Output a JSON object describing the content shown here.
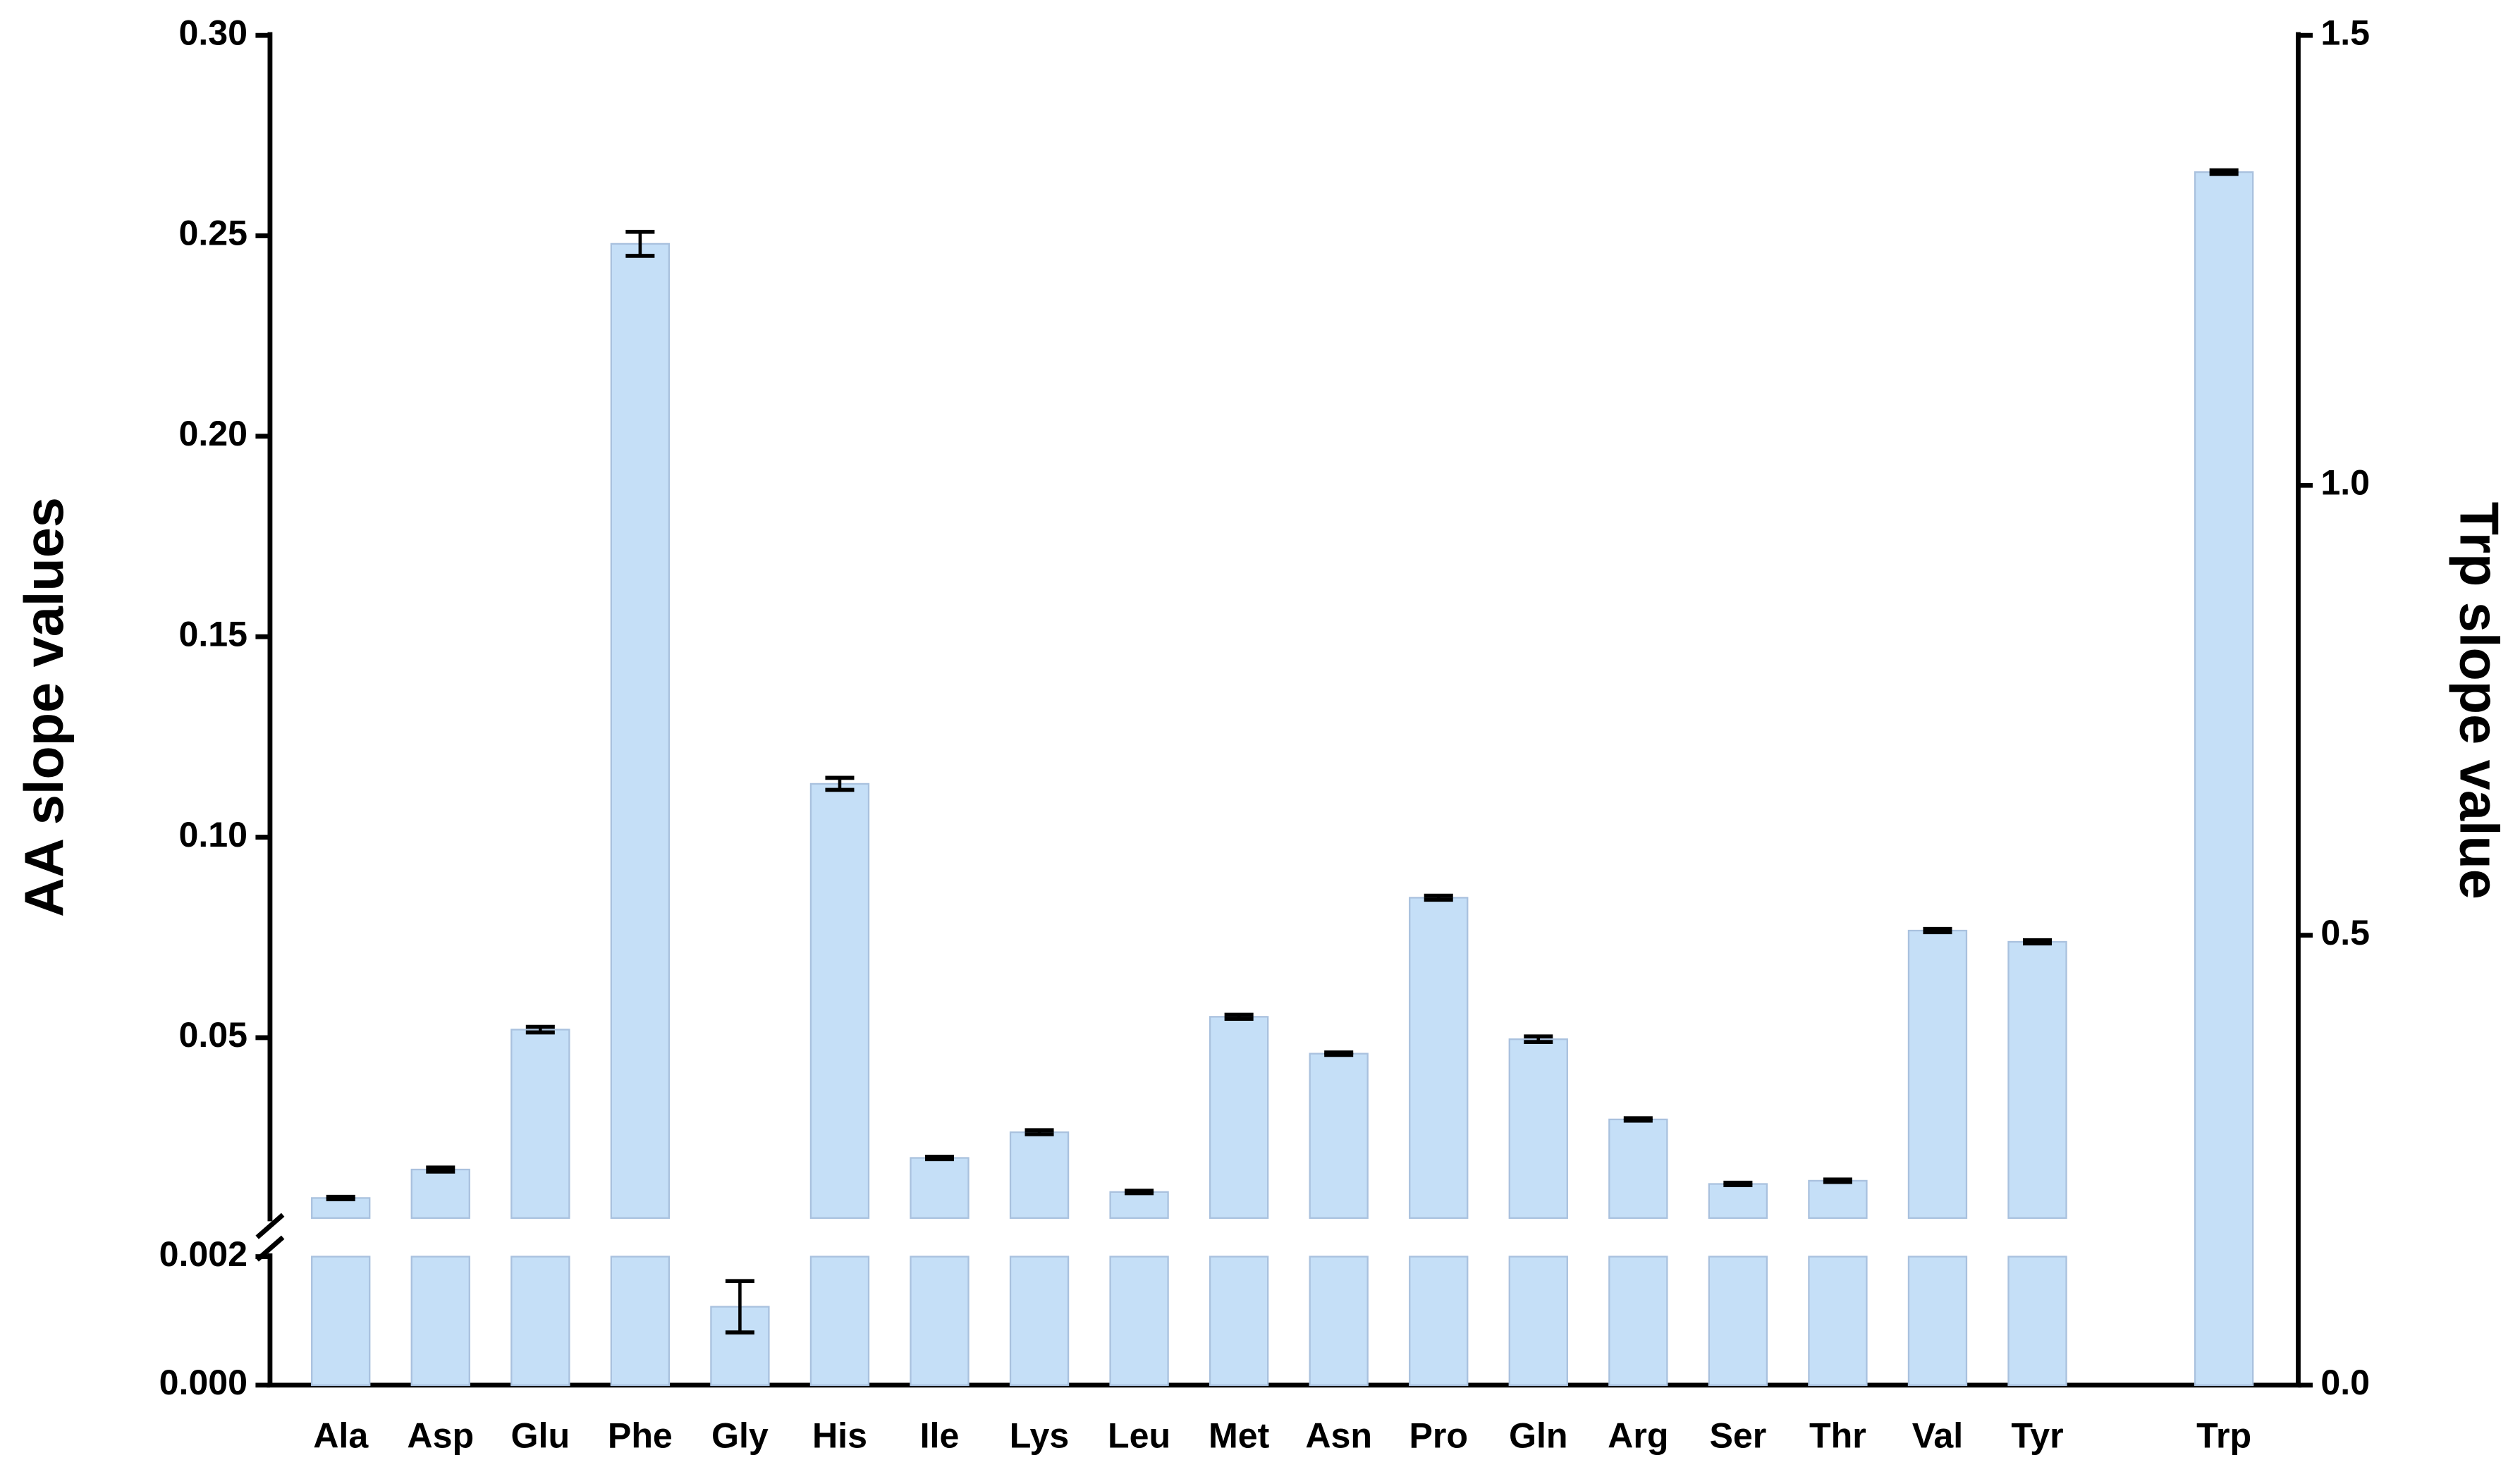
{
  "chart_data": {
    "type": "bar",
    "y_title": "AA slope values",
    "y2_title": "Trp slope value",
    "categories": [
      "Ala",
      "Asp",
      "Glu",
      "Phe",
      "Gly",
      "His",
      "Ile",
      "Lys",
      "Leu",
      "Met",
      "Asn",
      "Pro",
      "Gln",
      "Arg",
      "Ser",
      "Thr",
      "Val",
      "Tyr",
      "Trp"
    ],
    "series": [
      {
        "color": "#c5dff7",
        "values": [
          0.01,
          0.0171,
          0.052,
          0.248,
          0.00122,
          0.1133,
          0.02,
          0.0264,
          0.0115,
          0.0552,
          0.046,
          0.0849,
          0.0496,
          0.0296,
          0.0135,
          0.0143,
          0.0767,
          0.0739,
          null
        ],
        "errors": [
          0.0003,
          0.0005,
          0.0007,
          0.003,
          0.0004,
          0.0015,
          0.0003,
          0.0005,
          0.0003,
          0.0005,
          0.0003,
          0.0005,
          0.0007,
          0.0003,
          0.0003,
          0.0003,
          0.0004,
          0.0004,
          null
        ]
      },
      {
        "color": "#c5dff7",
        "axis": "y2",
        "values": [
          null,
          null,
          null,
          null,
          null,
          null,
          null,
          null,
          null,
          null,
          null,
          null,
          null,
          null,
          null,
          null,
          null,
          null,
          1.348
        ],
        "errors": [
          null,
          null,
          null,
          null,
          null,
          null,
          null,
          null,
          null,
          null,
          null,
          null,
          null,
          null,
          null,
          null,
          null,
          null,
          0.002
        ]
      }
    ],
    "ylim": [
      0,
      0.3
    ],
    "ybreak": [
      0.002,
      0.005
    ],
    "yticks": [
      {
        "value": 0,
        "label": "0.000"
      },
      0.002,
      0.05,
      {
        "value": 0.1,
        "label": "0.10"
      },
      0.15,
      {
        "value": 0.2,
        "label": "0.20"
      },
      0.25,
      {
        "value": 0.3,
        "label": "0.30"
      }
    ],
    "y2lim": [
      0,
      1.5
    ],
    "y2ticks": [
      {
        "value": 0,
        "label": "0.0"
      },
      0.5,
      {
        "value": 1,
        "label": "1.0"
      },
      1.5
    ],
    "grid": false
  }
}
